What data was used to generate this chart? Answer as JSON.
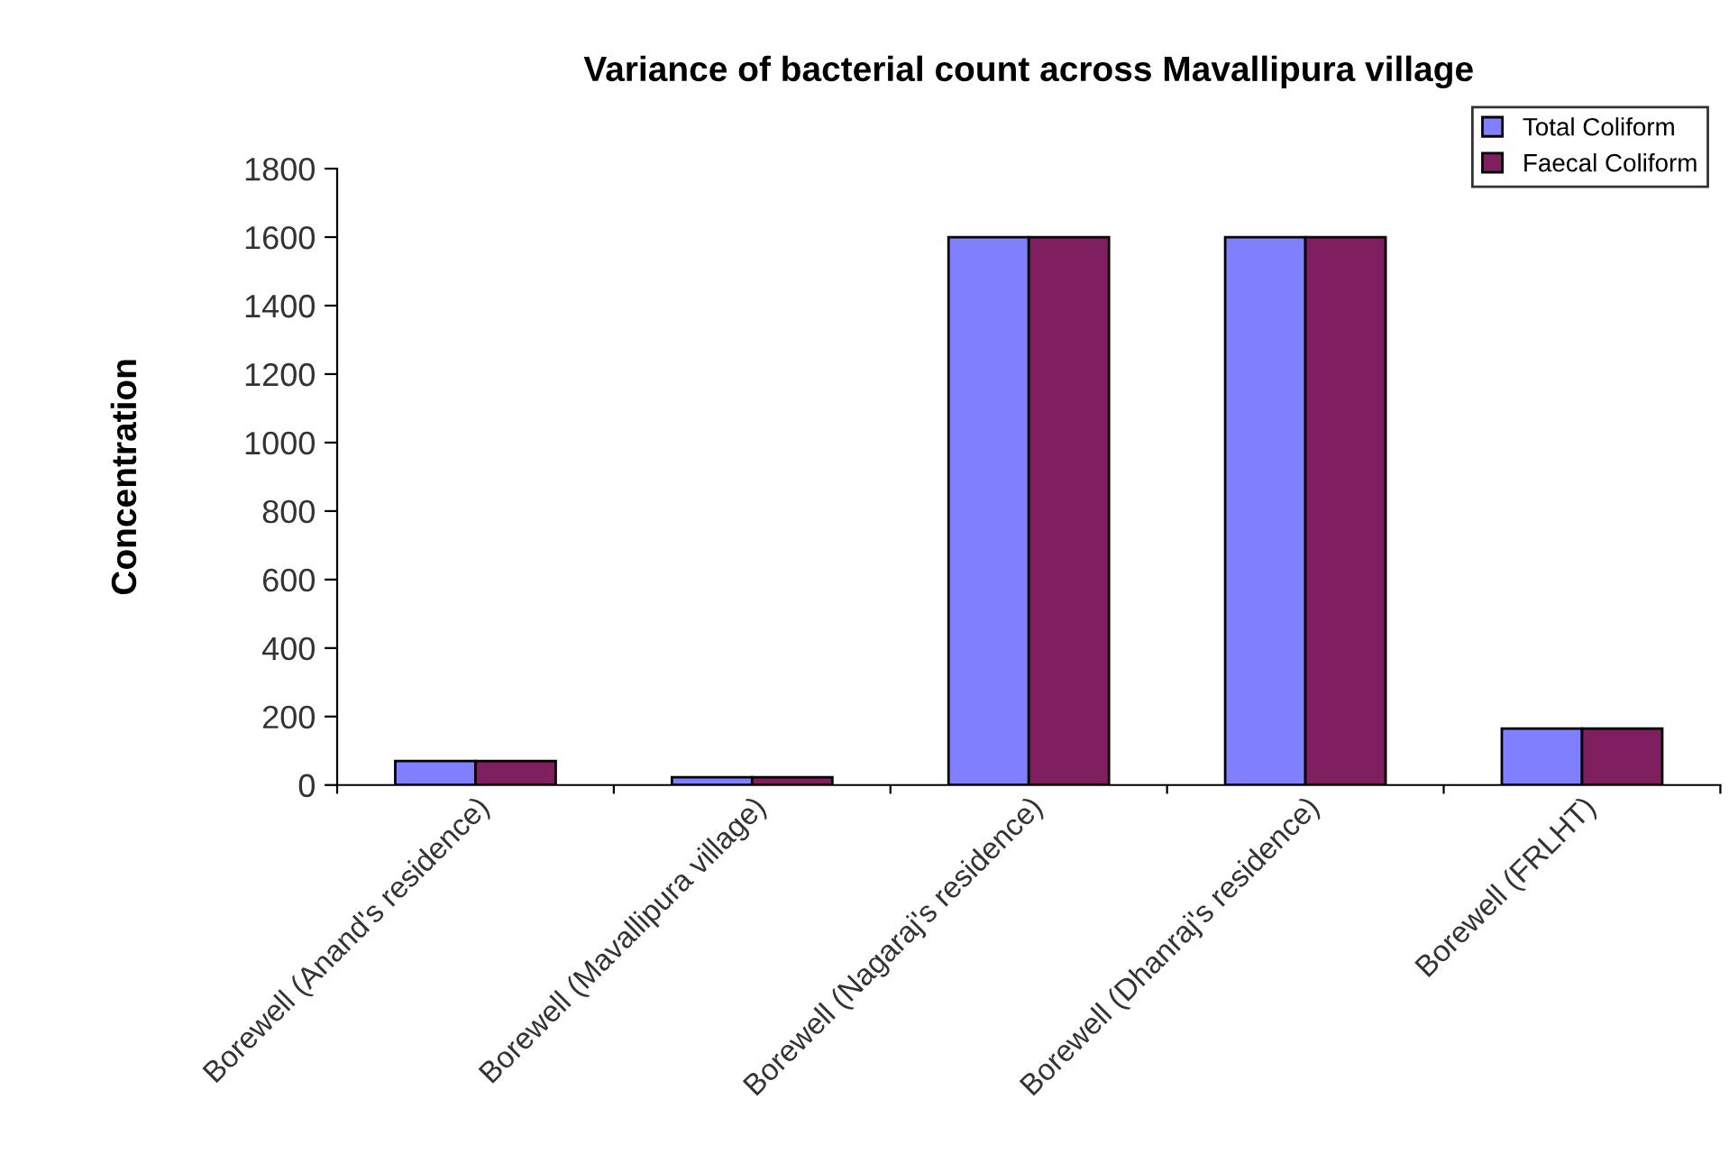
{
  "chart_data": {
    "type": "bar",
    "title": "Variance of bacterial count across Mavallipura village",
    "ylabel": "Concentration",
    "categories": [
      "Borewell (Anand's residence)",
      "Borewell (Mavallipura village)",
      "Borewell (Nagaraj's residence)",
      "Borewell (Dhanraj's residence)",
      "Borewell (FRLHT)"
    ],
    "series": [
      {
        "name": "Total Coliform",
        "color": "#8080ff",
        "values": [
          70,
          23,
          1600,
          1600,
          165
        ]
      },
      {
        "name": "Faecal Coliform",
        "color": "#7f1f5f",
        "values": [
          70,
          23,
          1600,
          1600,
          165
        ]
      }
    ],
    "ylim": [
      0,
      1800
    ],
    "yticks": [
      0,
      200,
      400,
      600,
      800,
      1000,
      1200,
      1400,
      1600,
      1800
    ],
    "grid": false,
    "legend": "top right"
  }
}
